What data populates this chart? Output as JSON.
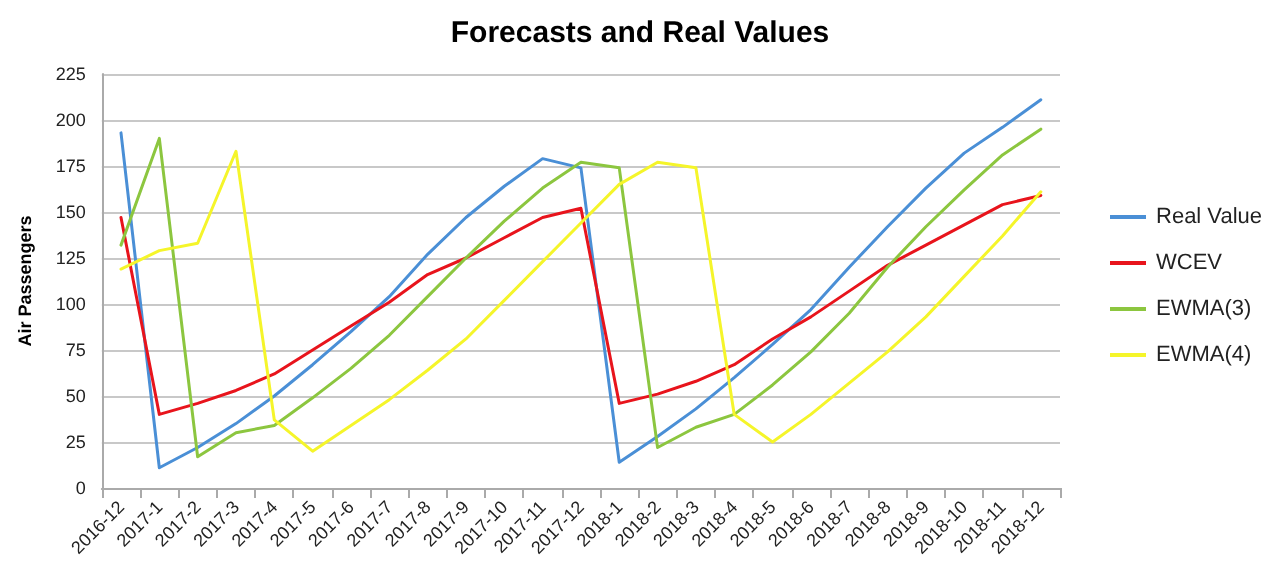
{
  "chart_data": {
    "type": "line",
    "title": "Forecasts and Real Values",
    "ylabel": "Air Passengers",
    "categories": [
      "2016-12",
      "2017-1",
      "2017-2",
      "2017-3",
      "2017-4",
      "2017-5",
      "2017-6",
      "2017-7",
      "2017-8",
      "2017-9",
      "2017-10",
      "2017-11",
      "2017-12",
      "2018-1",
      "2018-2",
      "2018-3",
      "2018-4",
      "2018-5",
      "2018-6",
      "2018-7",
      "2018-8",
      "2018-9",
      "2018-10",
      "2018-11",
      "2018-12"
    ],
    "series": [
      {
        "name": "Real Value",
        "color": "#4a8fd6",
        "values": [
          193,
          11,
          22,
          35,
          50,
          67,
          85,
          104,
          127,
          147,
          164,
          179,
          174,
          14,
          28,
          43,
          60,
          78,
          97,
          120,
          142,
          163,
          182,
          196,
          211
        ]
      },
      {
        "name": "WCEV",
        "color": "#e8141c",
        "values": [
          147,
          40,
          46,
          53,
          62,
          75,
          88,
          101,
          116,
          125,
          136,
          147,
          152,
          46,
          51,
          58,
          67,
          81,
          93,
          107,
          121,
          132,
          143,
          154,
          159
        ]
      },
      {
        "name": "EWMA(3)",
        "color": "#8cc63f",
        "values": [
          132,
          190,
          17,
          30,
          34,
          49,
          65,
          83,
          104,
          125,
          145,
          163,
          177,
          174,
          22,
          33,
          40,
          56,
          74,
          95,
          120,
          142,
          162,
          181,
          195
        ]
      },
      {
        "name": "EWMA(4)",
        "color": "#f5f52a",
        "values": [
          119,
          129,
          133,
          183,
          37,
          20,
          34,
          48,
          64,
          81,
          102,
          123,
          144,
          165,
          177,
          174,
          40,
          25,
          40,
          57,
          74,
          93,
          115,
          137,
          161
        ]
      }
    ],
    "ylim": [
      0,
      225
    ],
    "yticks": [
      0,
      25,
      50,
      75,
      100,
      125,
      150,
      175,
      200,
      225
    ],
    "grid": "y",
    "legend": "right",
    "marker": "none",
    "line_style": "solid"
  }
}
